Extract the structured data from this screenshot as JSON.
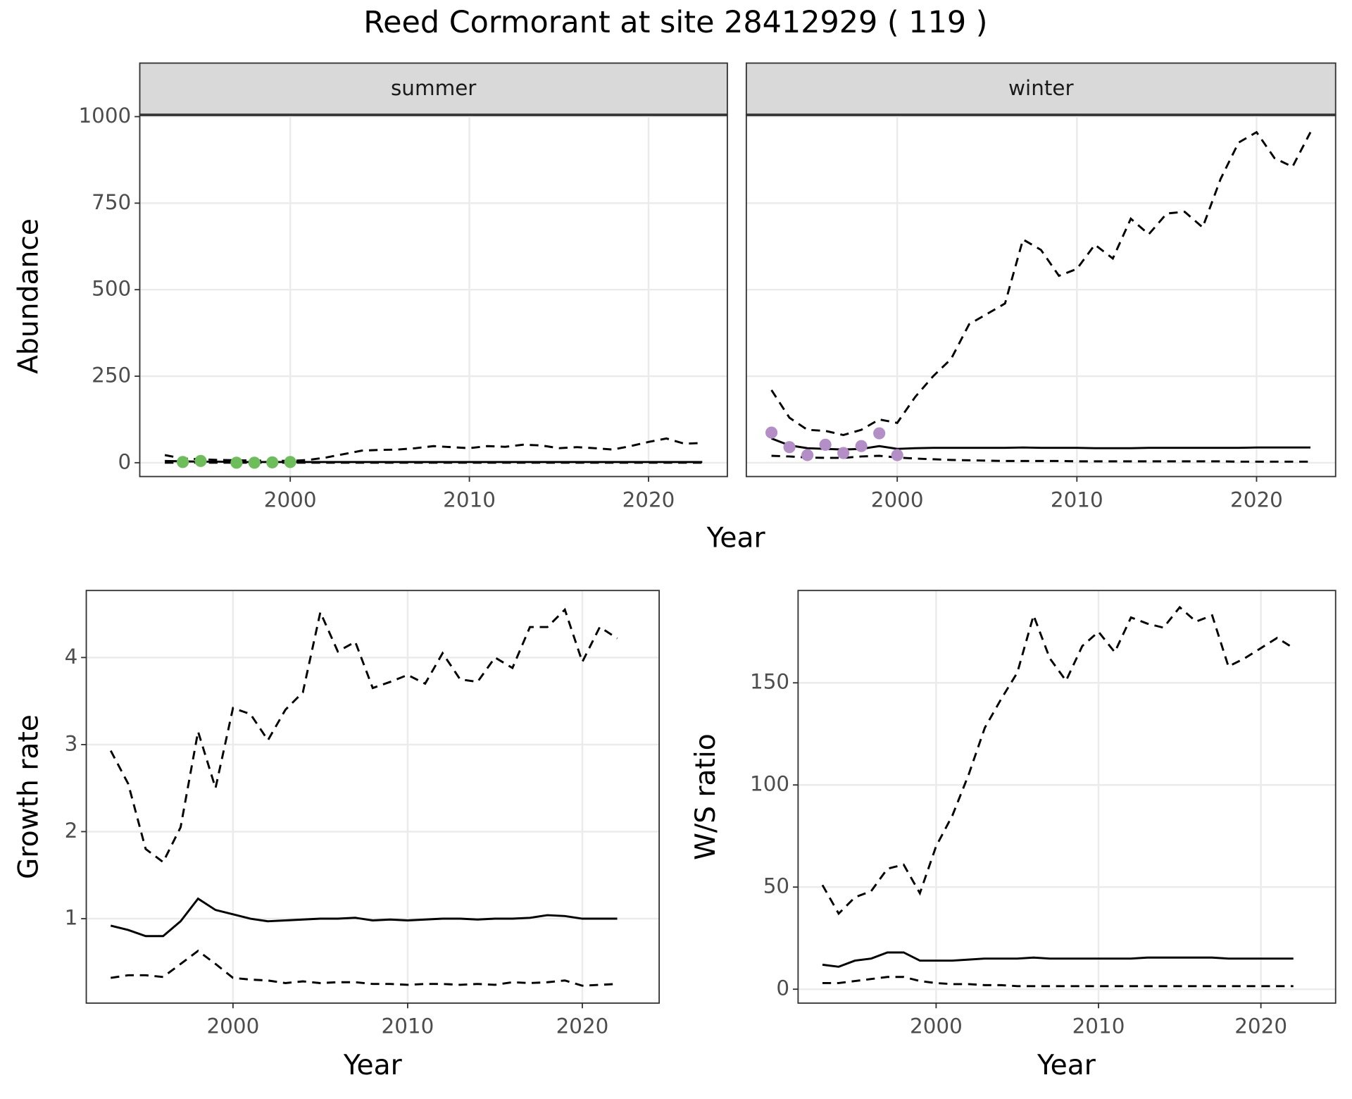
{
  "title": "Reed Cormorant at site 28412929 ( 119 )",
  "chart_data": [
    {
      "type": "line",
      "facet": "summer",
      "xlabel": "Year",
      "ylabel": "Abundance",
      "grid": true,
      "xlim": [
        1991.6,
        2024.4
      ],
      "xticks": [
        2000,
        2010,
        2020
      ],
      "ylim": [
        -40,
        1005
      ],
      "yticks": [
        0,
        250,
        500,
        750,
        1000
      ],
      "x": [
        1993,
        1994,
        1995,
        1996,
        1997,
        1998,
        1999,
        2000,
        2001,
        2002,
        2003,
        2004,
        2005,
        2006,
        2007,
        2008,
        2009,
        2010,
        2011,
        2012,
        2013,
        2014,
        2015,
        2016,
        2017,
        2018,
        2019,
        2020,
        2021,
        2022,
        2023
      ],
      "series": [
        {
          "style": "dashed",
          "color": "#000000",
          "values": [
            22,
            12,
            10,
            8,
            7,
            6,
            6,
            5,
            8,
            15,
            25,
            35,
            37,
            38,
            42,
            48,
            45,
            42,
            48,
            46,
            52,
            50,
            42,
            45,
            42,
            38,
            48,
            60,
            70,
            55,
            57
          ]
        },
        {
          "style": "solid",
          "color": "#000000",
          "values": [
            5,
            4,
            3,
            3,
            2,
            2,
            2,
            2,
            2,
            2,
            2,
            2,
            2,
            2,
            2,
            2,
            2,
            2,
            2,
            2,
            2,
            2,
            2,
            2,
            2,
            2,
            2,
            2,
            2,
            2,
            2
          ]
        },
        {
          "style": "dashed",
          "color": "#000000",
          "values": [
            0,
            0,
            0,
            0,
            0,
            0,
            0,
            0,
            0,
            0,
            0,
            0,
            0,
            0,
            0,
            0,
            0,
            0,
            0,
            0,
            0,
            0,
            0,
            0,
            0,
            0,
            0,
            0,
            0,
            0,
            0
          ]
        },
        {
          "style": "points",
          "color": "#6dbe5a",
          "x": [
            1994,
            1995,
            1997,
            1998,
            1999,
            2000
          ],
          "values": [
            2,
            5,
            0,
            0,
            1,
            2
          ]
        }
      ]
    },
    {
      "type": "line",
      "facet": "winter",
      "sharey": true,
      "grid": true,
      "xlim": [
        1991.6,
        2024.4
      ],
      "xticks": [
        2000,
        2010,
        2020
      ],
      "x": [
        1993,
        1994,
        1995,
        1996,
        1997,
        1998,
        1999,
        2000,
        2001,
        2002,
        2003,
        2004,
        2005,
        2006,
        2007,
        2008,
        2009,
        2010,
        2011,
        2012,
        2013,
        2014,
        2015,
        2016,
        2017,
        2018,
        2019,
        2020,
        2021,
        2022,
        2023
      ],
      "series": [
        {
          "style": "dashed",
          "color": "#000000",
          "values": [
            210,
            130,
            95,
            92,
            80,
            95,
            125,
            115,
            190,
            250,
            300,
            400,
            430,
            460,
            645,
            615,
            540,
            560,
            630,
            590,
            705,
            660,
            720,
            725,
            680,
            820,
            925,
            955,
            880,
            855,
            955
          ]
        },
        {
          "style": "solid",
          "color": "#000000",
          "values": [
            70,
            50,
            42,
            40,
            38,
            40,
            48,
            40,
            42,
            43,
            43,
            43,
            43,
            43,
            44,
            43,
            43,
            43,
            42,
            42,
            42,
            43,
            43,
            43,
            43,
            43,
            43,
            44,
            44,
            44,
            44
          ]
        },
        {
          "style": "dashed",
          "color": "#000000",
          "values": [
            20,
            18,
            15,
            14,
            14,
            18,
            20,
            15,
            12,
            10,
            8,
            7,
            6,
            5,
            5,
            5,
            5,
            4,
            4,
            4,
            4,
            4,
            4,
            4,
            4,
            4,
            3,
            3,
            3,
            3,
            3
          ]
        },
        {
          "style": "points",
          "color": "#b48fc7",
          "x": [
            1993,
            1994,
            1995,
            1996,
            1997,
            1998,
            1999,
            2000
          ],
          "values": [
            87,
            45,
            22,
            52,
            28,
            48,
            85,
            22
          ]
        }
      ]
    },
    {
      "type": "line",
      "xlabel": "Year",
      "ylabel": "Growth rate",
      "grid": true,
      "xlim": [
        1991.6,
        2024.4
      ],
      "xticks": [
        2000,
        2010,
        2020
      ],
      "ylim": [
        0.03,
        4.77
      ],
      "yticks": [
        1,
        2,
        3,
        4
      ],
      "x": [
        1993,
        1994,
        1995,
        1996,
        1997,
        1998,
        1999,
        2000,
        2001,
        2002,
        2003,
        2004,
        2005,
        2006,
        2007,
        2008,
        2009,
        2010,
        2011,
        2012,
        2013,
        2014,
        2015,
        2016,
        2017,
        2018,
        2019,
        2020,
        2021,
        2022
      ],
      "series": [
        {
          "style": "dashed",
          "color": "#000000",
          "values": [
            2.93,
            2.55,
            1.8,
            1.65,
            2.05,
            3.15,
            2.5,
            3.42,
            3.35,
            3.05,
            3.4,
            3.6,
            4.52,
            4.07,
            4.18,
            3.65,
            3.72,
            3.8,
            3.7,
            4.05,
            3.75,
            3.72,
            4.0,
            3.88,
            4.35,
            4.35,
            4.55,
            3.95,
            4.35,
            4.22
          ]
        },
        {
          "style": "solid",
          "color": "#000000",
          "values": [
            0.92,
            0.87,
            0.8,
            0.8,
            0.97,
            1.23,
            1.1,
            1.05,
            1.0,
            0.97,
            0.98,
            0.99,
            1.0,
            1.0,
            1.01,
            0.98,
            0.99,
            0.98,
            0.99,
            1.0,
            1.0,
            0.99,
            1.0,
            1.0,
            1.01,
            1.04,
            1.03,
            1.0,
            1.0,
            1.0
          ]
        },
        {
          "style": "dashed",
          "color": "#000000",
          "values": [
            0.32,
            0.35,
            0.35,
            0.33,
            0.48,
            0.63,
            0.48,
            0.32,
            0.3,
            0.29,
            0.26,
            0.28,
            0.26,
            0.27,
            0.27,
            0.25,
            0.25,
            0.24,
            0.25,
            0.25,
            0.24,
            0.25,
            0.24,
            0.27,
            0.26,
            0.27,
            0.29,
            0.23,
            0.24,
            0.25
          ]
        }
      ]
    },
    {
      "type": "line",
      "xlabel": "Year",
      "ylabel": "W/S ratio",
      "grid": true,
      "xlim": [
        1991.5,
        2024.6
      ],
      "xticks": [
        2000,
        2010,
        2020
      ],
      "ylim": [
        -6.8,
        195.2
      ],
      "yticks": [
        0,
        50,
        100,
        150
      ],
      "x": [
        1993,
        1994,
        1995,
        1996,
        1997,
        1998,
        1999,
        2000,
        2001,
        2002,
        2003,
        2004,
        2005,
        2006,
        2007,
        2008,
        2009,
        2010,
        2011,
        2012,
        2013,
        2014,
        2015,
        2016,
        2017,
        2018,
        2019,
        2020,
        2021,
        2022
      ],
      "series": [
        {
          "style": "dashed",
          "color": "#000000",
          "values": [
            51,
            37,
            45,
            48,
            59,
            61,
            47,
            70,
            85,
            105,
            128,
            142,
            155,
            183,
            162,
            151,
            168,
            175,
            165,
            182,
            179,
            177,
            187,
            180,
            183,
            158,
            162,
            167,
            172,
            167
          ]
        },
        {
          "style": "solid",
          "color": "#000000",
          "values": [
            12,
            11,
            14,
            15,
            18,
            18,
            14,
            14,
            14,
            14.5,
            15,
            15,
            15,
            15.5,
            15,
            15,
            15,
            15,
            15,
            15,
            15.5,
            15.5,
            15.5,
            15.5,
            15.5,
            15,
            15,
            15,
            15,
            15
          ]
        },
        {
          "style": "dashed",
          "color": "#000000",
          "values": [
            3,
            3,
            4,
            5,
            6,
            6,
            4,
            3,
            2.5,
            2.5,
            2,
            2,
            1.5,
            1.5,
            1.5,
            1.5,
            1.5,
            1.5,
            1.5,
            1.5,
            1.5,
            1.5,
            1.5,
            1.5,
            1.5,
            1.5,
            1.5,
            1.5,
            1.5,
            1.5
          ]
        }
      ]
    }
  ]
}
